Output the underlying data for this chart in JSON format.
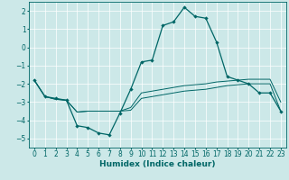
{
  "title": "",
  "xlabel": "Humidex (Indice chaleur)",
  "bg_color": "#cce8e8",
  "line_color": "#006666",
  "grid_color": "#ffffff",
  "xlim": [
    -0.5,
    23.5
  ],
  "ylim": [
    -5.5,
    2.5
  ],
  "yticks": [
    -5,
    -4,
    -3,
    -2,
    -1,
    0,
    1,
    2
  ],
  "xticks": [
    0,
    1,
    2,
    3,
    4,
    5,
    6,
    7,
    8,
    9,
    10,
    11,
    12,
    13,
    14,
    15,
    16,
    17,
    18,
    19,
    20,
    21,
    22,
    23
  ],
  "series1": {
    "x": [
      0,
      1,
      2,
      3,
      4,
      5,
      6,
      7,
      8,
      9,
      10,
      11,
      12,
      13,
      14,
      15,
      16,
      17,
      18,
      19,
      20,
      21,
      22,
      23
    ],
    "y": [
      -1.8,
      -2.7,
      -2.8,
      -2.9,
      -4.3,
      -4.4,
      -4.7,
      -4.8,
      -3.6,
      -2.3,
      -0.8,
      -0.7,
      1.2,
      1.4,
      2.2,
      1.7,
      1.6,
      0.3,
      -1.6,
      -1.8,
      -2.0,
      -2.5,
      -2.5,
      -3.5
    ]
  },
  "series2": {
    "x": [
      0,
      1,
      2,
      3,
      4,
      5,
      6,
      7,
      8,
      9,
      10,
      11,
      12,
      13,
      14,
      15,
      16,
      17,
      18,
      19,
      20,
      21,
      22,
      23
    ],
    "y": [
      -1.8,
      -2.7,
      -2.85,
      -2.9,
      -3.55,
      -3.5,
      -3.5,
      -3.5,
      -3.5,
      -3.45,
      -2.8,
      -2.7,
      -2.6,
      -2.5,
      -2.4,
      -2.35,
      -2.3,
      -2.2,
      -2.1,
      -2.05,
      -2.0,
      -2.0,
      -2.0,
      -3.5
    ]
  },
  "series3": {
    "x": [
      0,
      1,
      2,
      3,
      4,
      5,
      6,
      7,
      8,
      9,
      10,
      11,
      12,
      13,
      14,
      15,
      16,
      17,
      18,
      19,
      20,
      21,
      22,
      23
    ],
    "y": [
      -1.8,
      -2.7,
      -2.85,
      -2.9,
      -3.55,
      -3.5,
      -3.5,
      -3.5,
      -3.5,
      -3.3,
      -2.5,
      -2.4,
      -2.3,
      -2.2,
      -2.1,
      -2.05,
      -2.0,
      -1.9,
      -1.85,
      -1.8,
      -1.75,
      -1.75,
      -1.75,
      -3.0
    ]
  },
  "xlabel_fontsize": 6.5,
  "tick_fontsize": 5.5,
  "lw_main": 0.9,
  "lw_band": 0.7,
  "marker_size": 2.2
}
